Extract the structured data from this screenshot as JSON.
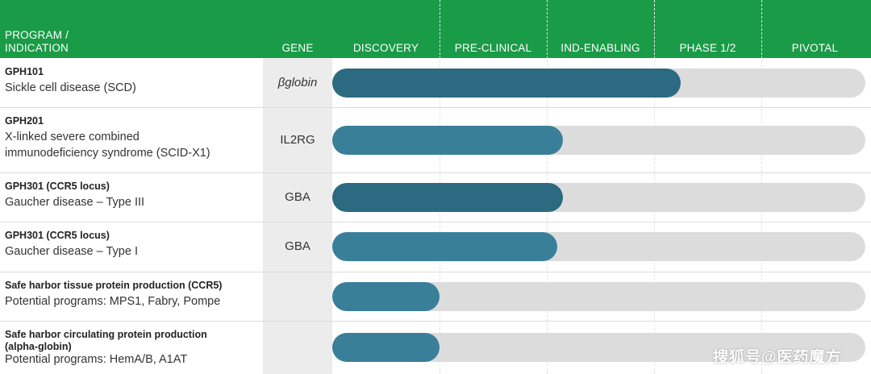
{
  "header": {
    "program": "PROGRAM /",
    "program_line2": "INDICATION",
    "gene": "GENE",
    "stages": [
      "DISCOVERY",
      "PRE-CLINICAL",
      "IND-ENABLING",
      "PHASE 1/2",
      "PIVOTAL"
    ]
  },
  "colors": {
    "header_bg": "#1a9b47",
    "bar_dark": "#2b6a80",
    "bar_mid": "#3a7f9a",
    "track": "#dcdcdc",
    "gene_col": "#ececec"
  },
  "chart_data": {
    "type": "bar",
    "orientation": "horizontal",
    "stage_labels": [
      "DISCOVERY",
      "PRE-CLINICAL",
      "IND-ENABLING",
      "PHASE 1/2",
      "PIVOTAL"
    ],
    "progress_scale": "stages completed (0-5)",
    "rows": [
      {
        "title": "GPH101",
        "subtitle": "Sickle cell disease (SCD)",
        "subtitle2": "",
        "gene": "βglobin",
        "gene_italic": true,
        "progress": 3.25,
        "color": "#2b6a80"
      },
      {
        "title": "GPH201",
        "subtitle": "X-linked severe combined",
        "subtitle2": "immunodeficiency syndrome (SCID-X1)",
        "gene": "IL2RG",
        "gene_italic": false,
        "progress": 2.15,
        "color": "#3a7f9a"
      },
      {
        "title": "GPH301 (CCR5 locus)",
        "subtitle": "Gaucher disease – Type III",
        "subtitle2": "",
        "gene": "GBA",
        "gene_italic": false,
        "progress": 2.15,
        "color": "#2b6a80"
      },
      {
        "title": "GPH301 (CCR5 locus)",
        "subtitle": "Gaucher disease – Type I",
        "subtitle2": "",
        "gene": "GBA",
        "gene_italic": false,
        "progress": 2.1,
        "color": "#3a7f9a"
      },
      {
        "title": "Safe harbor tissue protein production (CCR5)",
        "subtitle": "Potential programs: MPS1, Fabry, Pompe",
        "subtitle2": "",
        "gene": "",
        "gene_italic": false,
        "progress": 1.0,
        "color": "#3a7f9a"
      },
      {
        "title": "Safe harbor circulating protein production",
        "title2": "(alpha-globin)",
        "subtitle": "Potential programs: HemA/B, A1AT",
        "subtitle2": "",
        "gene": "",
        "gene_italic": false,
        "progress": 1.0,
        "color": "#3a7f9a"
      }
    ]
  },
  "watermark": "搜狐号@医药魔方"
}
